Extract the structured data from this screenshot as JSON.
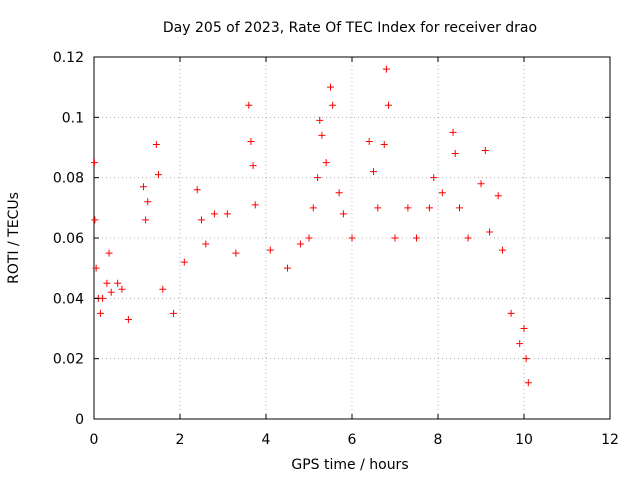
{
  "chart_data": {
    "type": "scatter",
    "title": "Day 205 of 2023, Rate Of TEC Index for receiver drao",
    "xlabel": "GPS time / hours",
    "ylabel": "ROTI / TECUs",
    "xlim": [
      0,
      12
    ],
    "ylim": [
      0,
      0.12
    ],
    "x_ticks": [
      0,
      2,
      4,
      6,
      8,
      10,
      12
    ],
    "x_tick_labels": [
      "0",
      "2",
      "4",
      "6",
      "8",
      "10",
      "12"
    ],
    "y_ticks": [
      0,
      0.02,
      0.04,
      0.06,
      0.08,
      0.1,
      0.12
    ],
    "y_tick_labels": [
      "0",
      "0.02",
      "0.04",
      "0.06",
      "0.08",
      "0.1",
      "0.12"
    ],
    "grid": true,
    "marker": "+",
    "color": "#ff0000",
    "series": [
      {
        "points": [
          [
            0.01,
            0.085
          ],
          [
            0.02,
            0.066
          ],
          [
            0.05,
            0.05
          ],
          [
            0.1,
            0.04
          ],
          [
            0.15,
            0.035
          ],
          [
            0.2,
            0.04
          ],
          [
            0.3,
            0.045
          ],
          [
            0.35,
            0.055
          ],
          [
            0.4,
            0.042
          ],
          [
            0.55,
            0.045
          ],
          [
            0.65,
            0.043
          ],
          [
            0.8,
            0.033
          ],
          [
            1.15,
            0.077
          ],
          [
            1.2,
            0.066
          ],
          [
            1.25,
            0.072
          ],
          [
            1.45,
            0.091
          ],
          [
            1.5,
            0.081
          ],
          [
            1.6,
            0.043
          ],
          [
            1.85,
            0.035
          ],
          [
            2.1,
            0.052
          ],
          [
            2.4,
            0.076
          ],
          [
            2.5,
            0.066
          ],
          [
            2.6,
            0.058
          ],
          [
            2.8,
            0.068
          ],
          [
            3.1,
            0.068
          ],
          [
            3.3,
            0.055
          ],
          [
            3.6,
            0.104
          ],
          [
            3.65,
            0.092
          ],
          [
            3.7,
            0.084
          ],
          [
            3.75,
            0.071
          ],
          [
            4.1,
            0.056
          ],
          [
            4.5,
            0.05
          ],
          [
            4.8,
            0.058
          ],
          [
            5.0,
            0.06
          ],
          [
            5.1,
            0.07
          ],
          [
            5.2,
            0.08
          ],
          [
            5.25,
            0.099
          ],
          [
            5.3,
            0.094
          ],
          [
            5.4,
            0.085
          ],
          [
            5.5,
            0.11
          ],
          [
            5.55,
            0.104
          ],
          [
            5.7,
            0.075
          ],
          [
            5.8,
            0.068
          ],
          [
            6.0,
            0.06
          ],
          [
            6.4,
            0.092
          ],
          [
            6.5,
            0.082
          ],
          [
            6.6,
            0.07
          ],
          [
            6.75,
            0.091
          ],
          [
            6.8,
            0.116
          ],
          [
            6.85,
            0.104
          ],
          [
            7.0,
            0.06
          ],
          [
            7.3,
            0.07
          ],
          [
            7.5,
            0.06
          ],
          [
            7.8,
            0.07
          ],
          [
            7.9,
            0.08
          ],
          [
            8.1,
            0.075
          ],
          [
            8.35,
            0.095
          ],
          [
            8.4,
            0.088
          ],
          [
            8.5,
            0.07
          ],
          [
            8.7,
            0.06
          ],
          [
            9.0,
            0.078
          ],
          [
            9.1,
            0.089
          ],
          [
            9.2,
            0.062
          ],
          [
            9.4,
            0.074
          ],
          [
            9.5,
            0.056
          ],
          [
            9.7,
            0.035
          ],
          [
            9.9,
            0.025
          ],
          [
            10.0,
            0.03
          ],
          [
            10.05,
            0.02
          ],
          [
            10.1,
            0.012
          ]
        ]
      }
    ]
  }
}
